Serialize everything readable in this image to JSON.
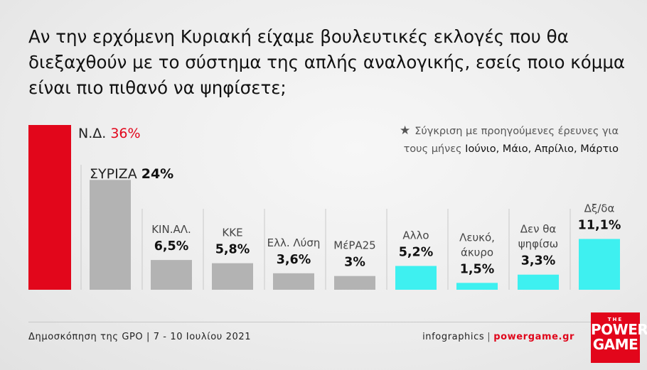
{
  "title": "Αν την ερχόμενη Κυριακή είχαμε βουλευτικές εκλογές που θα διεξαχθούν με το σύστημα της απλής αναλογικής, εσείς ποιο κόμμα είναι πιο πιθανό να ψηφίσετε;",
  "note": {
    "star": "★",
    "line1": "Σύγκριση με προηγούμενες έρευνες για",
    "line2_prefix": "τους μήνες ",
    "line2_months": "Ιούνιο, Μάιο, Απρίλιο, Μάρτιο"
  },
  "chart_data": {
    "type": "bar",
    "title": "Αν την ερχόμενη Κυριακή είχαμε βουλευτικές εκλογές που θα διεξαχθούν με το σύστημα της απλής αναλογικής, εσείς ποιο κόμμα είναι πιο πιθανό να ψηφίσετε;",
    "categories": [
      "Ν.Δ.",
      "ΣΥΡΙΖΑ",
      "ΚΙΝ.ΑΛ.",
      "ΚΚΕ",
      "Ελλ. Λύση",
      "ΜέΡΑ25",
      "Αλλο",
      "Λευκό, άκυρο",
      "Δεν θα ψηφίσω",
      "Δξ/δα"
    ],
    "category_lines": [
      [
        "Ν.Δ."
      ],
      [
        "ΣΥΡΙΖΑ"
      ],
      [
        "ΚΙΝ.ΑΛ."
      ],
      [
        "ΚΚΕ"
      ],
      [
        "Ελλ. Λύση"
      ],
      [
        "ΜέΡΑ25"
      ],
      [
        "Αλλο"
      ],
      [
        "Λευκό,",
        "άκυρο"
      ],
      [
        "Δεν θα",
        "ψηφίσω"
      ],
      [
        "Δξ/δα"
      ]
    ],
    "values": [
      36,
      24,
      6.5,
      5.8,
      3.6,
      3,
      5.2,
      1.5,
      3.3,
      11.1
    ],
    "value_labels": [
      "36%",
      "24%",
      "6,5%",
      "5,8%",
      "3,6%",
      "3%",
      "5,2%",
      "1,5%",
      "3,3%",
      "11,1%"
    ],
    "colors": [
      "#e2061b",
      "#b3b3b3",
      "#b3b3b3",
      "#b3b3b3",
      "#b3b3b3",
      "#b3b3b3",
      "#3ef0f0",
      "#3ef0f0",
      "#3ef0f0",
      "#3ef0f0"
    ],
    "highlight_color": "#e2061b",
    "ylim": [
      0,
      36
    ],
    "grid": false,
    "xlabel": "",
    "ylabel": ""
  },
  "footer": {
    "source": "Δημοσκόπηση της GPO | 7 - 10 Ιουλίου 2021",
    "infographics": "infographics",
    "separator": "|",
    "site": "powergame.gr"
  },
  "logo": {
    "the": "THE",
    "line1": "POWER",
    "line2": "GAME"
  }
}
